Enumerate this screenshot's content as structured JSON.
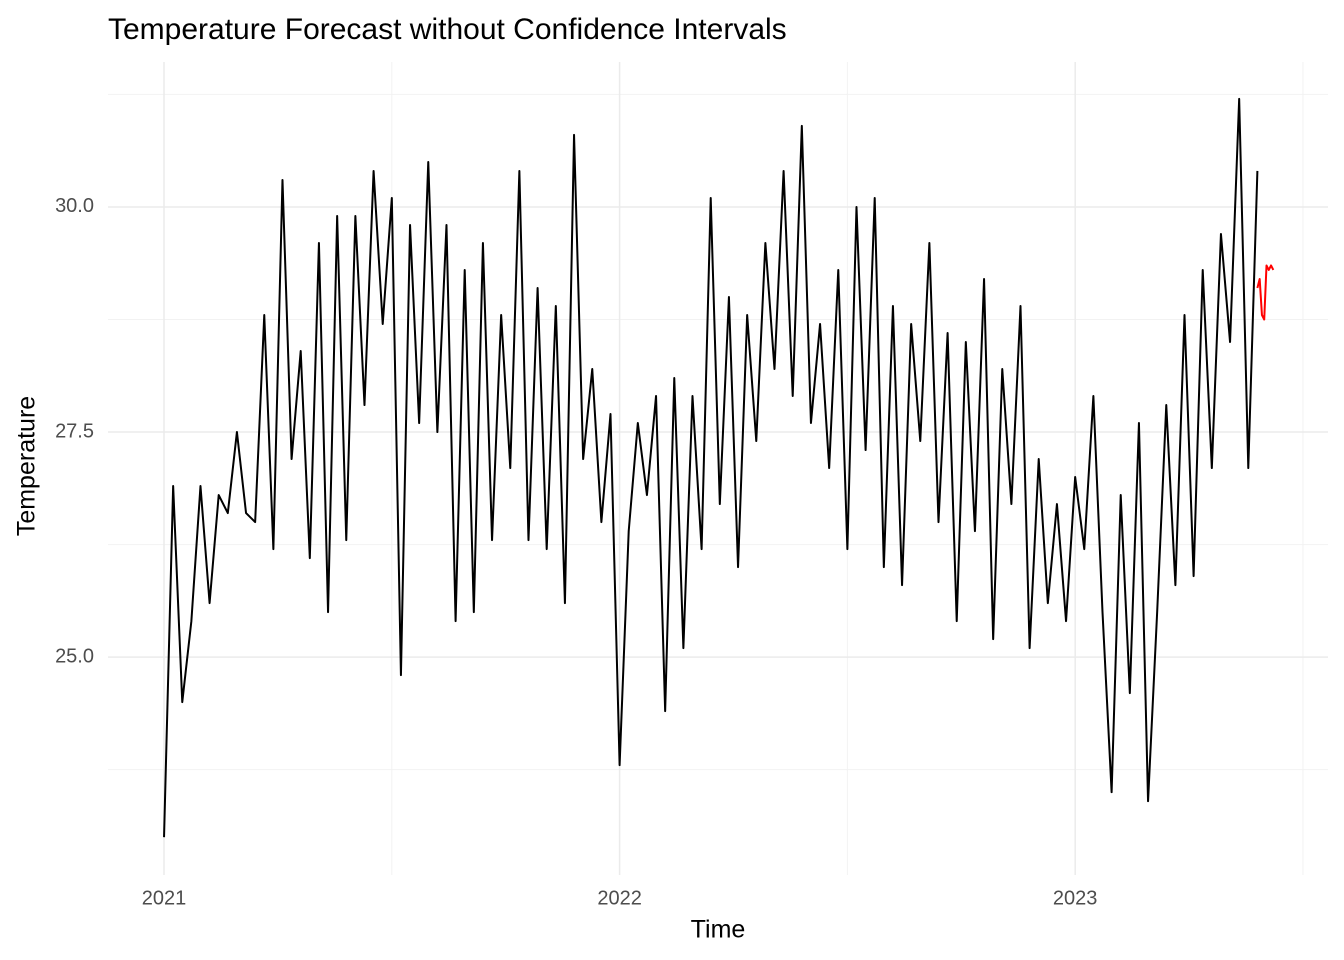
{
  "chart_data": {
    "type": "line",
    "title": "Temperature Forecast without Confidence Intervals",
    "x_label": "Time",
    "y_label": "Temperature",
    "xlim": [
      2020.877,
      2023.555
    ],
    "xticks": [
      {
        "value": 2021,
        "label": "2021"
      },
      {
        "value": 2022,
        "label": "2022"
      },
      {
        "value": 2023,
        "label": "2023"
      }
    ],
    "x_minor_ticks": [
      2021.5,
      2022.5,
      2023.5
    ],
    "ylim": [
      22.58,
      31.61
    ],
    "yticks": [
      {
        "value": 25,
        "label": "25.0"
      },
      {
        "value": 27.5,
        "label": "27.5"
      },
      {
        "value": 30,
        "label": "30.0"
      }
    ],
    "y_minor_ticks": [
      23.75,
      26.25,
      28.75,
      31.25
    ],
    "grid": true,
    "series": [
      {
        "color": "#000000",
        "x": [
          2021.0,
          2021.02,
          2021.04,
          2021.06,
          2021.08,
          2021.1,
          2021.12,
          2021.14,
          2021.16,
          2021.18,
          2021.2,
          2021.22,
          2021.24,
          2021.26,
          2021.28,
          2021.3,
          2021.32,
          2021.34,
          2021.36,
          2021.38,
          2021.4,
          2021.42,
          2021.44,
          2021.46,
          2021.48,
          2021.5,
          2021.52,
          2021.54,
          2021.56,
          2021.58,
          2021.6,
          2021.62,
          2021.64,
          2021.66,
          2021.68,
          2021.7,
          2021.72,
          2021.74,
          2021.76,
          2021.78,
          2021.8,
          2021.82,
          2021.84,
          2021.86,
          2021.88,
          2021.9,
          2021.92,
          2021.94,
          2021.96,
          2021.98,
          2022.0,
          2022.02,
          2022.04,
          2022.06,
          2022.08,
          2022.1,
          2022.12,
          2022.14,
          2022.16,
          2022.18,
          2022.2,
          2022.22,
          2022.24,
          2022.26,
          2022.28,
          2022.3,
          2022.32,
          2022.34,
          2022.36,
          2022.38,
          2022.4,
          2022.42,
          2022.44,
          2022.46,
          2022.48,
          2022.5,
          2022.52,
          2022.54,
          2022.56,
          2022.58,
          2022.6,
          2022.62,
          2022.64,
          2022.66,
          2022.68,
          2022.7,
          2022.72,
          2022.74,
          2022.76,
          2022.78,
          2022.8,
          2022.82,
          2022.84,
          2022.86,
          2022.88,
          2022.9,
          2022.92,
          2022.94,
          2022.96,
          2022.98,
          2023.0,
          2023.02,
          2023.04,
          2023.06,
          2023.08,
          2023.1,
          2023.12,
          2023.14,
          2023.16,
          2023.18,
          2023.2,
          2023.22,
          2023.24,
          2023.26,
          2023.28,
          2023.3,
          2023.32,
          2023.34,
          2023.36,
          2023.38,
          2023.4
        ],
        "values": [
          23.0,
          26.9,
          24.5,
          25.4,
          26.9,
          25.6,
          26.8,
          26.6,
          27.5,
          26.6,
          26.5,
          28.8,
          26.2,
          30.3,
          27.2,
          28.4,
          26.1,
          29.6,
          25.5,
          29.9,
          26.3,
          29.9,
          27.8,
          30.4,
          28.7,
          30.1,
          24.8,
          29.8,
          27.6,
          30.5,
          27.5,
          29.8,
          25.4,
          29.3,
          25.5,
          29.6,
          26.3,
          28.8,
          27.1,
          30.4,
          26.3,
          29.1,
          26.2,
          28.9,
          25.6,
          30.8,
          27.2,
          28.2,
          26.5,
          27.7,
          23.8,
          26.4,
          27.6,
          26.8,
          27.9,
          24.4,
          28.1,
          25.1,
          27.9,
          26.2,
          30.1,
          26.7,
          29.0,
          26.0,
          28.8,
          27.4,
          29.6,
          28.2,
          30.4,
          27.9,
          30.9,
          27.6,
          28.7,
          27.1,
          29.3,
          26.2,
          30.0,
          27.3,
          30.1,
          26.0,
          28.9,
          25.8,
          28.7,
          27.4,
          29.6,
          26.5,
          28.6,
          25.4,
          28.5,
          26.4,
          29.2,
          25.2,
          28.2,
          26.7,
          28.9,
          25.1,
          27.2,
          25.6,
          26.7,
          25.4,
          27.0,
          26.2,
          27.9,
          25.5,
          23.5,
          26.8,
          24.6,
          27.6,
          23.4,
          25.5,
          27.8,
          25.8,
          28.8,
          25.9,
          29.3,
          27.1,
          29.7,
          28.5,
          31.2,
          27.1,
          30.4
        ]
      },
      {
        "color": "#ff0000",
        "x": [
          2023.4,
          2023.405,
          2023.41,
          2023.415,
          2023.42,
          2023.425,
          2023.43,
          2023.435
        ],
        "values": [
          29.1,
          29.2,
          28.8,
          28.75,
          29.35,
          29.3,
          29.35,
          29.3
        ]
      }
    ]
  }
}
